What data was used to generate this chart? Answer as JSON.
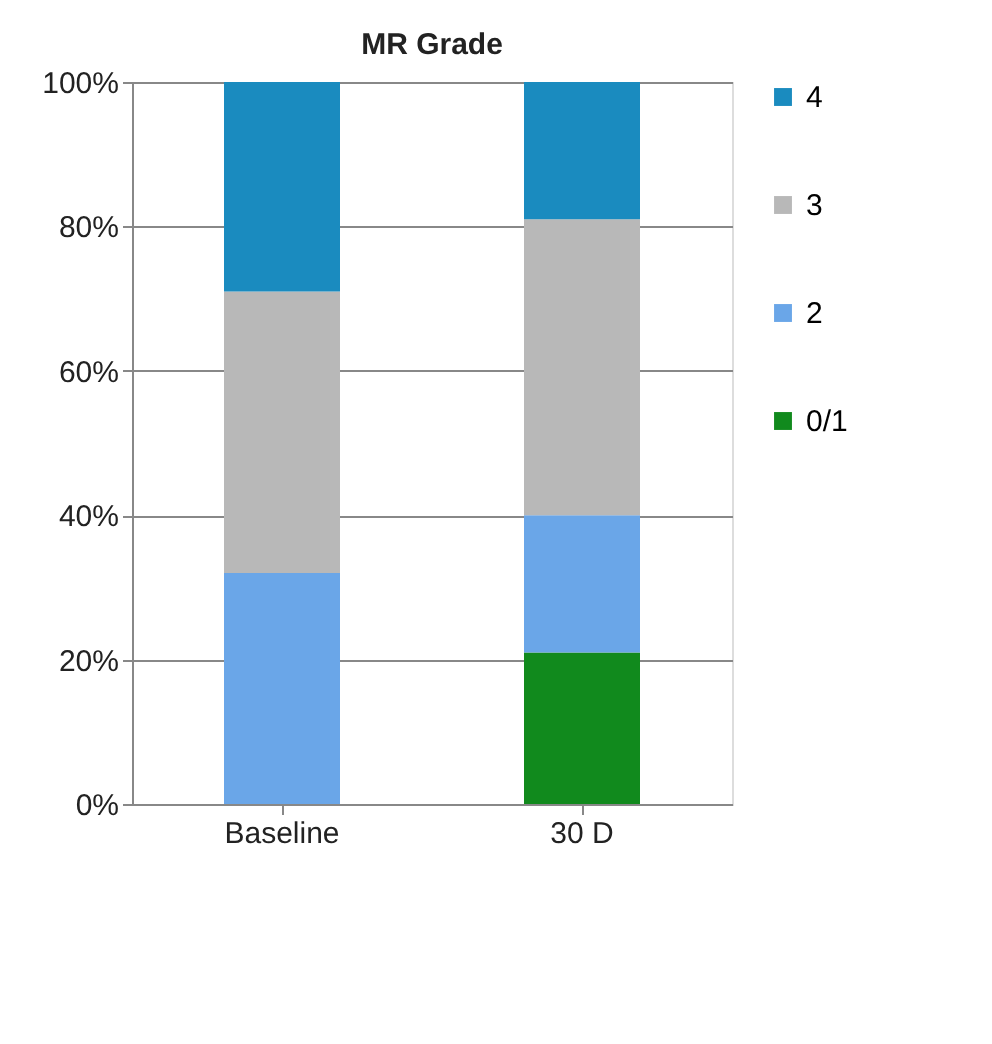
{
  "chart_data": {
    "type": "bar",
    "title": "MR Grade",
    "categories": [
      "Baseline",
      "30 D"
    ],
    "stacked": true,
    "series": [
      {
        "name": "0/1",
        "color": "#118a1d",
        "values": [
          0,
          21
        ]
      },
      {
        "name": "2",
        "color": "#6aa6e8",
        "values": [
          32,
          19
        ]
      },
      {
        "name": "3",
        "color": "#b8b8b8",
        "values": [
          39,
          41
        ]
      },
      {
        "name": "4",
        "color": "#1a8bbf",
        "values": [
          29,
          19
        ]
      }
    ],
    "ylim": [
      0,
      100
    ],
    "yticks": [
      {
        "value": 0,
        "label": "0%"
      },
      {
        "value": 20,
        "label": "20%"
      },
      {
        "value": 40,
        "label": "40%"
      },
      {
        "value": 60,
        "label": "60%"
      },
      {
        "value": 80,
        "label": "80%"
      },
      {
        "value": 100,
        "label": "100%"
      }
    ],
    "grid": "y",
    "legend": "right"
  }
}
